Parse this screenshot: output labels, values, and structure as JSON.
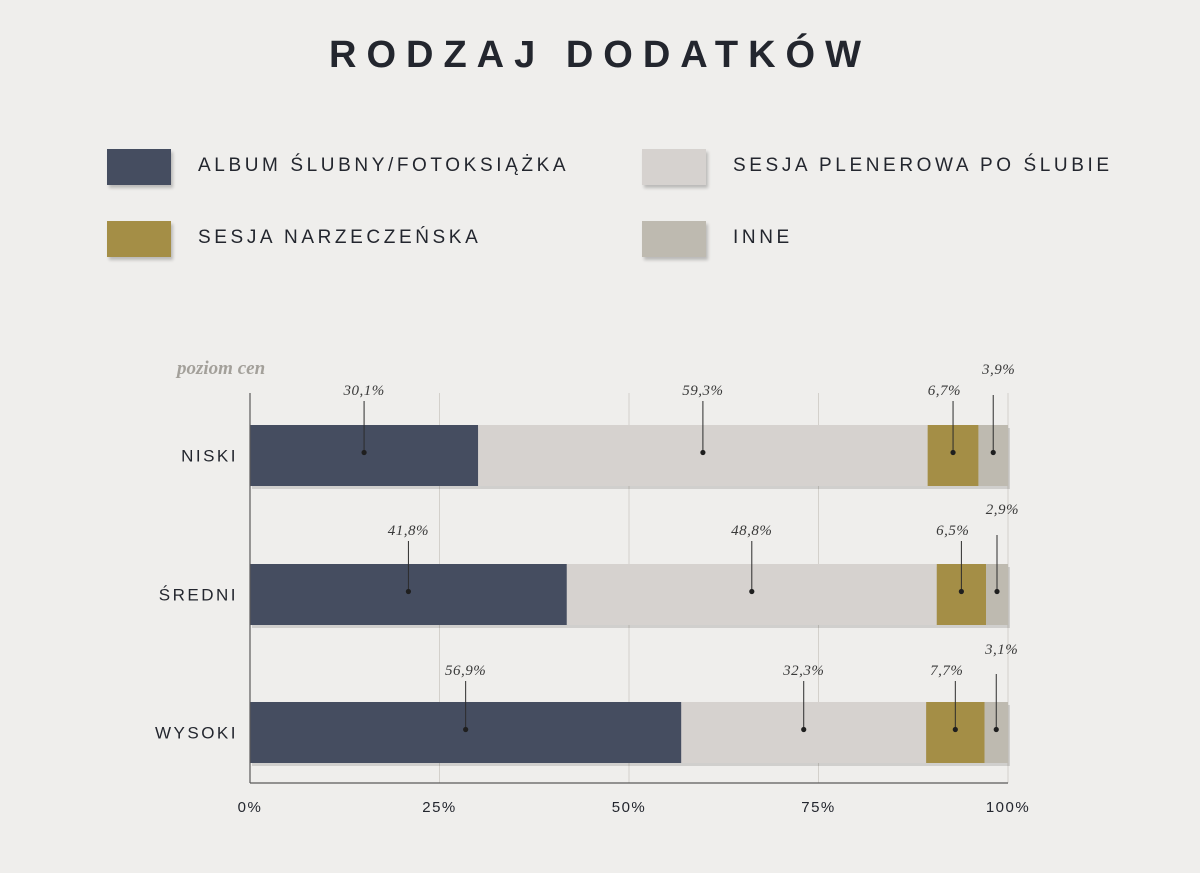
{
  "chart_data": {
    "type": "bar",
    "orientation": "horizontal",
    "stacked": true,
    "title": "RODZAJ DODATKÓW",
    "ylabel": "poziom cen",
    "xlabel": "",
    "categories": [
      "NISKI",
      "ŚREDNI",
      "WYSOKI"
    ],
    "xlim": [
      0,
      100
    ],
    "xticks": [
      0,
      25,
      50,
      75,
      100
    ],
    "xtick_labels": [
      "0%",
      "25%",
      "50%",
      "75%",
      "100%"
    ],
    "grid": "vertical",
    "legend_position": "top",
    "series": [
      {
        "name": "ALBUM ŚLUBNY/FOTOKSIĄŻKA",
        "color": "#454d60",
        "values": [
          30.1,
          41.8,
          56.9
        ],
        "labels": [
          "30,1%",
          "41,8%",
          "56,9%"
        ]
      },
      {
        "name": "SESJA PLENEROWA PO ŚLUBIE",
        "color": "#d6d2cf",
        "values": [
          59.3,
          48.8,
          32.3
        ],
        "labels": [
          "59,3%",
          "48,8%",
          "32,3%"
        ]
      },
      {
        "name": "SESJA NARZECZEŃSKA",
        "color": "#a48e46",
        "values": [
          6.7,
          6.5,
          7.7
        ],
        "labels": [
          "6,7%",
          "6,5%",
          "7,7%"
        ]
      },
      {
        "name": "INNE",
        "color": "#bebab0",
        "values": [
          3.9,
          2.9,
          3.1
        ],
        "labels": [
          "3,9%",
          "2,9%",
          "3,1%"
        ]
      }
    ]
  }
}
